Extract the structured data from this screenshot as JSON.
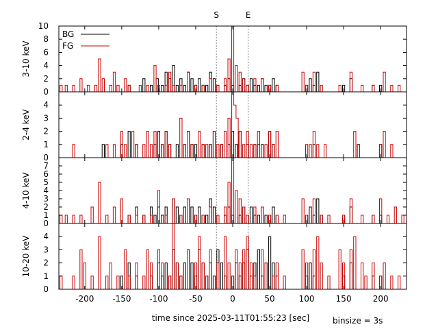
{
  "chart_data": {
    "type": "line",
    "xlabel": "time since 2025-03-11T01:55:23 [sec]",
    "note": "binsize = 3s",
    "xlim": [
      -235,
      235
    ],
    "x_ticks": [
      -200,
      -150,
      -100,
      -50,
      0,
      50,
      100,
      150,
      200
    ],
    "x_tick_labels": [
      "-200",
      "-150",
      "-100",
      "-50",
      "0",
      "50",
      "100",
      "150",
      "200"
    ],
    "markers": [
      {
        "label": "S",
        "x": -22
      },
      {
        "label": "E",
        "x": 21
      }
    ],
    "legend": {
      "placement": "top-left",
      "entries": [
        {
          "label": "BG",
          "color": "#000000"
        },
        {
          "label": "FG",
          "color": "#cc0000"
        }
      ]
    },
    "colors": {
      "bg": "#000000",
      "fg": "#cc0000",
      "marker": "#888888"
    },
    "panels": [
      {
        "ylabel": "3-10 keV",
        "ylim": [
          0,
          10
        ],
        "y_ticks": [
          0,
          2,
          4,
          6,
          8,
          10
        ],
        "y_tick_labels": [
          "0",
          "2",
          "4",
          "6",
          "8",
          "10"
        ],
        "series": [
          {
            "name": "BG",
            "x": [
              -140,
              -120,
              -110,
              -102,
              -95,
              -90,
              -85,
              -80,
              -75,
              -70,
              -65,
              -60,
              -55,
              -50,
              -45,
              -40,
              -35,
              -30,
              -25,
              -20,
              -15,
              -10,
              -5,
              0,
              5,
              10,
              15,
              20,
              25,
              30,
              35,
              40,
              45,
              50,
              55,
              60,
              100,
              105,
              110,
              115,
              150,
              160,
              190,
              200
            ],
            "y": [
              1,
              2,
              1,
              2,
              1,
              3,
              2,
              4,
              1,
              2,
              1,
              3,
              2,
              1,
              2,
              1,
              1,
              3,
              2,
              1,
              0,
              1,
              2,
              1,
              0,
              1,
              2,
              1,
              2,
              1,
              1,
              2,
              1,
              1,
              2,
              1,
              1,
              2,
              1,
              3,
              1,
              2,
              1,
              1
            ]
          },
          {
            "name": "FG",
            "x": [
              -232,
              -225,
              -215,
              -205,
              -195,
              -185,
              -180,
              -175,
              -165,
              -160,
              -155,
              -145,
              -140,
              -125,
              -115,
              -105,
              -100,
              -90,
              -85,
              -80,
              -70,
              -60,
              -50,
              -40,
              -30,
              -20,
              -10,
              -5,
              0,
              5,
              10,
              15,
              20,
              30,
              40,
              50,
              60,
              70,
              95,
              100,
              110,
              120,
              145,
              160,
              175,
              190,
              205,
              215,
              225
            ],
            "y": [
              1,
              1,
              1,
              2,
              1,
              1,
              5,
              2,
              1,
              3,
              1,
              2,
              1,
              1,
              1,
              4,
              1,
              1,
              3,
              1,
              1,
              3,
              1,
              1,
              2,
              1,
              2,
              5,
              10,
              4,
              3,
              2,
              1,
              2,
              2,
              1,
              1,
              0,
              3,
              1,
              3,
              1,
              1,
              3,
              1,
              1,
              3,
              1,
              1
            ]
          }
        ]
      },
      {
        "ylabel": "2-4 keV",
        "ylim": [
          0,
          5
        ],
        "y_ticks": [
          0,
          1,
          2,
          3,
          4
        ],
        "y_tick_labels": [
          "0",
          "1",
          "2",
          "3",
          "4"
        ],
        "series": [
          {
            "name": "BG",
            "x": [
              -175,
              -165,
              -150,
              -140,
              -130,
              -115,
              -105,
              -100,
              -95,
              -90,
              -85,
              -80,
              -75,
              -65,
              -60,
              -55,
              -50,
              -45,
              -40,
              -30,
              -25,
              -15,
              -5,
              0,
              5,
              10,
              20,
              30,
              35,
              40,
              50,
              55,
              60,
              110,
              170,
              200
            ],
            "y": [
              1,
              0,
              1,
              2,
              1,
              0,
              1,
              2,
              1,
              2,
              1,
              0,
              1,
              1,
              2,
              1,
              1,
              0,
              1,
              1,
              2,
              1,
              1,
              2,
              1,
              2,
              1,
              1,
              1,
              1,
              2,
              1,
              0,
              1,
              1,
              1
            ]
          },
          {
            "name": "FG",
            "x": [
              -215,
              -170,
              -160,
              -150,
              -145,
              -135,
              -120,
              -115,
              -110,
              -105,
              -95,
              -90,
              -85,
              -70,
              -65,
              -60,
              -55,
              -45,
              -40,
              -35,
              -25,
              -20,
              -15,
              -10,
              -5,
              0,
              3,
              6,
              10,
              15,
              20,
              25,
              30,
              35,
              45,
              50,
              55,
              60,
              100,
              105,
              110,
              115,
              125,
              165,
              170,
              200,
              205,
              215
            ],
            "y": [
              1,
              1,
              1,
              2,
              1,
              2,
              1,
              2,
              1,
              2,
              1,
              2,
              1,
              3,
              1,
              2,
              1,
              2,
              1,
              1,
              2,
              1,
              1,
              2,
              3,
              5,
              4,
              3,
              2,
              1,
              2,
              1,
              1,
              2,
              1,
              2,
              1,
              2,
              1,
              1,
              2,
              1,
              1,
              2,
              1,
              1,
              2,
              1
            ]
          }
        ]
      },
      {
        "ylabel": "4-10 keV",
        "ylim": [
          0,
          8
        ],
        "y_ticks": [
          0,
          1,
          2,
          3,
          4,
          5,
          6,
          7
        ],
        "y_tick_labels": [
          "0",
          "1",
          "2",
          "3",
          "4",
          "5",
          "6",
          "7"
        ],
        "series": [
          {
            "name": "BG",
            "x": [
              -140,
              -130,
              -120,
              -110,
              -105,
              -100,
              -95,
              -90,
              -80,
              -75,
              -70,
              -65,
              -60,
              -55,
              -50,
              -45,
              -40,
              -35,
              -30,
              -25,
              -20,
              -15,
              -10,
              -5,
              0,
              5,
              10,
              15,
              20,
              25,
              30,
              35,
              40,
              45,
              50,
              55,
              60,
              100,
              105,
              110,
              115,
              120,
              150,
              160,
              190,
              200
            ],
            "y": [
              1,
              2,
              1,
              2,
              1,
              2,
              1,
              2,
              3,
              2,
              1,
              2,
              3,
              2,
              1,
              2,
              1,
              1,
              3,
              2,
              1,
              0,
              1,
              2,
              1,
              0,
              1,
              2,
              1,
              2,
              1,
              1,
              2,
              1,
              1,
              2,
              1,
              1,
              2,
              1,
              3,
              1,
              1,
              2,
              1,
              1
            ]
          },
          {
            "name": "FG",
            "x": [
              -232,
              -225,
              -215,
              -205,
              -190,
              -180,
              -170,
              -160,
              -150,
              -140,
              -130,
              -120,
              -110,
              -100,
              -90,
              -80,
              -70,
              -60,
              -50,
              -40,
              -30,
              -20,
              -10,
              -5,
              0,
              5,
              10,
              15,
              20,
              30,
              40,
              50,
              60,
              70,
              95,
              100,
              110,
              120,
              130,
              150,
              160,
              175,
              190,
              200,
              210,
              220,
              230
            ],
            "y": [
              1,
              1,
              1,
              1,
              2,
              5,
              1,
              2,
              3,
              1,
              1,
              1,
              1,
              4,
              1,
              3,
              1,
              3,
              1,
              1,
              2,
              1,
              2,
              5,
              8,
              4,
              3,
              2,
              1,
              2,
              2,
              1,
              1,
              1,
              3,
              1,
              3,
              1,
              1,
              1,
              3,
              1,
              1,
              3,
              1,
              2,
              1
            ]
          }
        ]
      },
      {
        "ylabel": "10-20 keV",
        "ylim": [
          0,
          5
        ],
        "y_ticks": [
          0,
          1,
          2,
          3,
          4
        ],
        "y_tick_labels": [
          "0",
          "1",
          "2",
          "3",
          "4"
        ],
        "series": [
          {
            "name": "BG",
            "x": [
              -150,
              -140,
              -130,
              -120,
              -110,
              -100,
              -95,
              -90,
              -85,
              -80,
              -75,
              -70,
              -65,
              -60,
              -55,
              -50,
              -45,
              -40,
              -35,
              -30,
              -25,
              -20,
              -15,
              -10,
              -5,
              0,
              5,
              10,
              15,
              20,
              25,
              30,
              35,
              40,
              45,
              50,
              55,
              60,
              100,
              105,
              110,
              150,
              160,
              190,
              200
            ],
            "y": [
              1,
              2,
              1,
              0,
              1,
              2,
              1,
              2,
              1,
              3,
              2,
              1,
              2,
              3,
              2,
              1,
              3,
              2,
              1,
              2,
              1,
              3,
              2,
              1,
              0,
              1,
              2,
              1,
              2,
              3,
              1,
              2,
              3,
              1,
              2,
              4,
              2,
              1,
              1,
              2,
              1,
              1,
              2,
              1,
              1
            ]
          },
          {
            "name": "FG",
            "x": [
              -232,
              -225,
              -215,
              -205,
              -200,
              -190,
              -180,
              -170,
              -165,
              -155,
              -145,
              -140,
              -130,
              -120,
              -115,
              -110,
              -100,
              -95,
              -85,
              -80,
              -75,
              -70,
              -60,
              -50,
              -45,
              -40,
              -35,
              -30,
              -20,
              -10,
              -5,
              0,
              5,
              10,
              15,
              20,
              25,
              30,
              40,
              45,
              55,
              60,
              70,
              95,
              100,
              110,
              115,
              120,
              130,
              145,
              150,
              160,
              165,
              175,
              180,
              190,
              200,
              205,
              215,
              225
            ],
            "y": [
              1,
              0,
              1,
              3,
              2,
              1,
              4,
              1,
              2,
              1,
              3,
              1,
              2,
              1,
              3,
              2,
              3,
              2,
              1,
              5,
              2,
              1,
              3,
              2,
              4,
              2,
              1,
              3,
              2,
              4,
              2,
              1,
              3,
              2,
              3,
              4,
              2,
              1,
              3,
              2,
              1,
              2,
              1,
              3,
              2,
              3,
              4,
              2,
              1,
              3,
              2,
              3,
              4,
              2,
              1,
              2,
              1,
              2,
              1,
              1
            ]
          }
        ]
      }
    ]
  }
}
